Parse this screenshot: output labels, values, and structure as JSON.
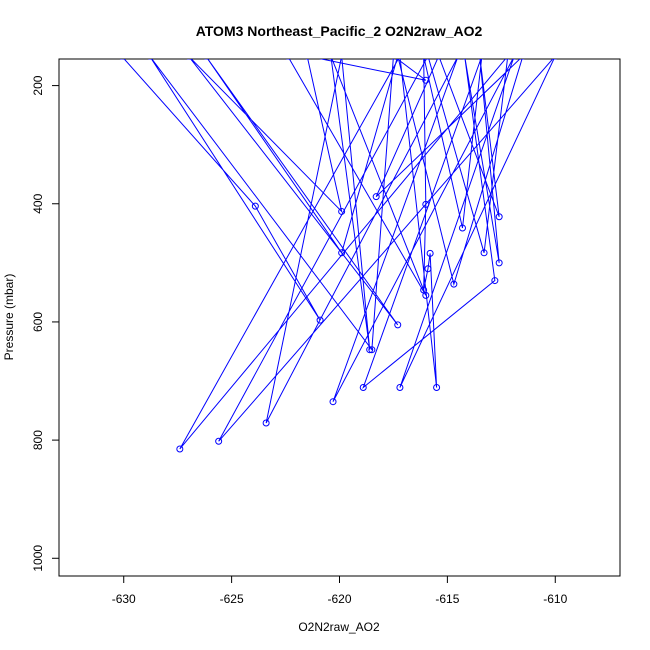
{
  "chart_data": {
    "type": "line",
    "title": "ATOM3 Northeast_Pacific_2 O2N2raw_AO2",
    "xlabel": "O2N2raw_AO2",
    "ylabel": "Pressure (mbar)",
    "xlim": [
      -633,
      -607
    ],
    "ylim": [
      1030,
      155
    ],
    "y_reversed": true,
    "xticks": [
      -630,
      -625,
      -620,
      -615,
      -610
    ],
    "yticks": [
      200,
      400,
      600,
      800,
      1000
    ],
    "grid": false,
    "legend": "none",
    "color": "#0000ff",
    "marker": "open-circle",
    "series": [
      {
        "points": [
          [
            -630.1,
            150
          ],
          [
            -623.9,
            404
          ],
          [
            -620.9,
            597
          ],
          [
            -628.8,
            150
          ],
          [
            -618.5,
            647
          ],
          [
            -617.5,
            150
          ],
          [
            -616.0,
            191
          ],
          [
            -621.5,
            150
          ],
          [
            -619.9,
            413
          ],
          [
            -627.0,
            150
          ],
          [
            -617.3,
            605
          ],
          [
            -626.2,
            150
          ],
          [
            -619.9,
            483
          ],
          [
            -617.3,
            150
          ],
          [
            -614.7,
            536
          ],
          [
            -611.5,
            150
          ],
          [
            -618.3,
            388
          ],
          [
            -615.4,
            150
          ],
          [
            -612.6,
            422
          ],
          [
            -613.5,
            150
          ],
          [
            -612.6,
            500
          ],
          [
            -614.2,
            150
          ],
          [
            -612.8,
            530
          ],
          [
            -618.9,
            711
          ],
          [
            -613.4,
            150
          ],
          [
            -614.3,
            441
          ],
          [
            -616.1,
            150
          ],
          [
            -616.0,
            401
          ],
          [
            -616.1,
            546
          ],
          [
            -615.9,
            510
          ],
          [
            -615.8,
            484
          ],
          [
            -615.5,
            711
          ],
          [
            -617.2,
            150
          ],
          [
            -627.4,
            815
          ],
          [
            -612.2,
            150
          ],
          [
            -613.3,
            483
          ],
          [
            -615.9,
            150
          ],
          [
            -625.6,
            802
          ],
          [
            -610.0,
            150
          ],
          [
            -617.2,
            711
          ],
          [
            -611.9,
            150
          ],
          [
            -620.3,
            735
          ],
          [
            -614.5,
            150
          ],
          [
            -623.4,
            771
          ],
          [
            -619.9,
            150
          ],
          [
            -618.6,
            647
          ],
          [
            -620.4,
            150
          ],
          [
            -616.0,
            555
          ],
          [
            -622.4,
            150
          ]
        ]
      }
    ]
  }
}
